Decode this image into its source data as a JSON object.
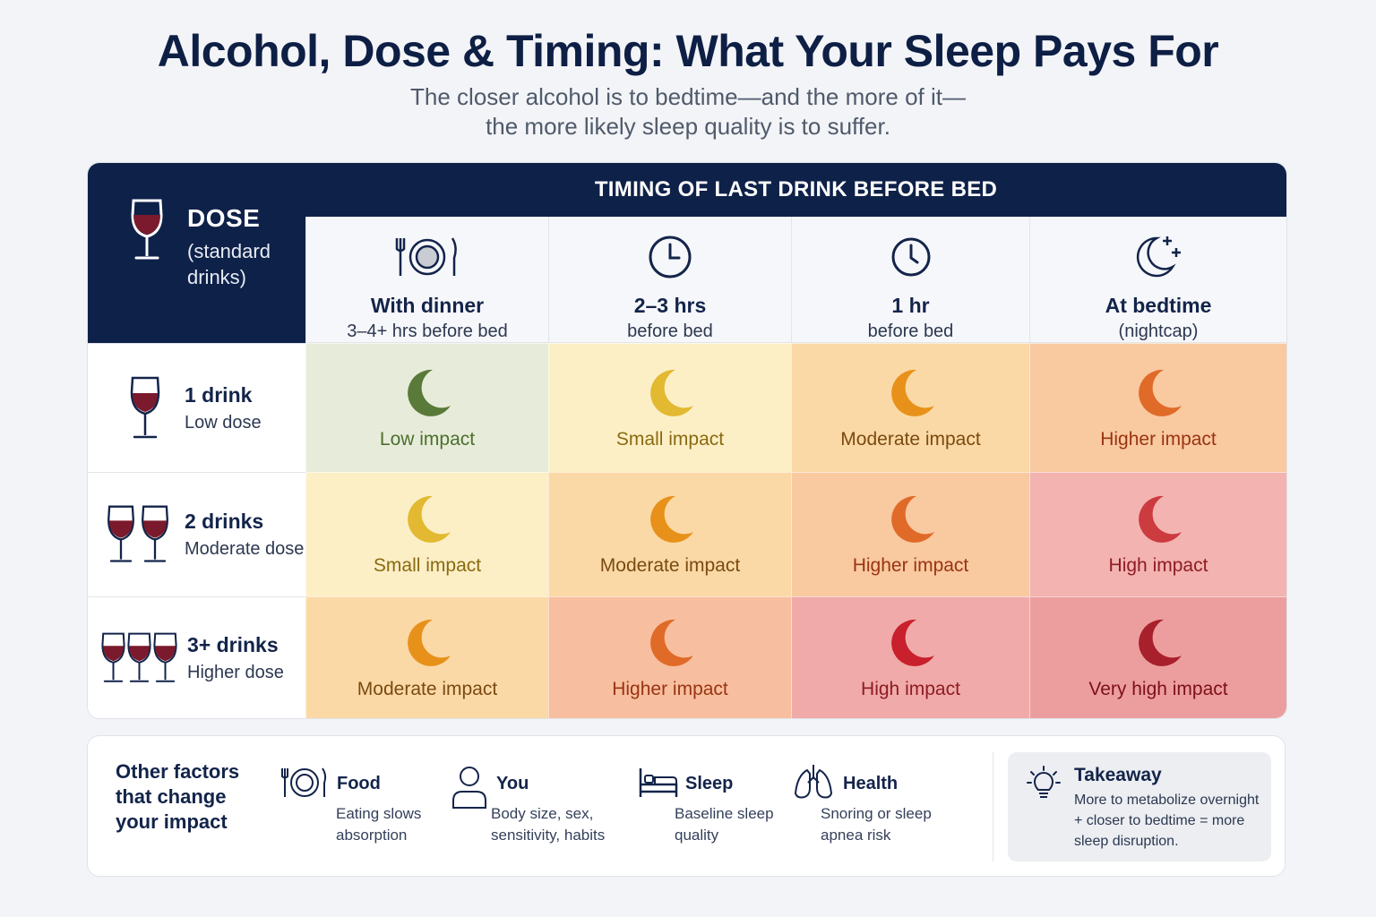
{
  "title": "Alcohol, Dose & Timing: What Your Sleep Pays For",
  "subtitle_lines": [
    "The closer alcohol is to bedtime—and the more of it—",
    "the more likely sleep quality is to suffer."
  ],
  "dose_header": {
    "title": "DOSE",
    "subtitle": "(standard drinks)",
    "icon": "wine-glass-icon"
  },
  "timing_header": "TIMING OF LAST DRINK BEFORE BED",
  "columns": [
    {
      "label": "With dinner",
      "sub": "3–4+ hrs before bed",
      "icon": "plate-fork-knife-icon"
    },
    {
      "label": "2–3 hrs",
      "sub": "before bed",
      "icon": "clock-icon"
    },
    {
      "label": "1 hr",
      "sub": "before bed",
      "icon": "clock-icon"
    },
    {
      "label": "At bedtime",
      "sub": "(nightcap)",
      "icon": "moon-stars-icon"
    }
  ],
  "rows": [
    {
      "label": "1 drink",
      "sub": "Low dose",
      "glasses": 1
    },
    {
      "label": "2 drinks",
      "sub": "Moderate dose",
      "glasses": 2
    },
    {
      "label": "3+ drinks",
      "sub": "Higher dose",
      "glasses": 3
    }
  ],
  "cells": [
    [
      {
        "text": "Low impact",
        "bg": "#e6ecd9",
        "moon": "#5a7a3a",
        "color": "#4e6e2e"
      },
      {
        "text": "Small impact",
        "bg": "#fcefc6",
        "moon": "#e2b930",
        "color": "#8a6a10"
      },
      {
        "text": "Moderate impact",
        "bg": "#fbd9a6",
        "moon": "#e8911a",
        "color": "#7a4a10"
      },
      {
        "text": "Higher impact",
        "bg": "#f9c9a0",
        "moon": "#e06a28",
        "color": "#9a3412"
      }
    ],
    [
      {
        "text": "Small impact",
        "bg": "#fcefc6",
        "moon": "#e2b930",
        "color": "#8a6a10"
      },
      {
        "text": "Moderate impact",
        "bg": "#fbd9a6",
        "moon": "#e8911a",
        "color": "#7a4a10"
      },
      {
        "text": "Higher impact",
        "bg": "#f9c9a0",
        "moon": "#e06a28",
        "color": "#9a3412"
      },
      {
        "text": "High impact",
        "bg": "#f3b3b0",
        "moon": "#cc3b40",
        "color": "#8e1c24"
      }
    ],
    [
      {
        "text": "Moderate impact",
        "bg": "#fbd9a6",
        "moon": "#e8911a",
        "color": "#7a4a10"
      },
      {
        "text": "Higher impact",
        "bg": "#f7bf9f",
        "moon": "#e06a28",
        "color": "#9a3412"
      },
      {
        "text": "High impact",
        "bg": "#f0aaa9",
        "moon": "#c8202c",
        "color": "#8e1c24"
      },
      {
        "text": "Very high impact",
        "bg": "#ec9e9e",
        "moon": "#a8202c",
        "color": "#7c1018"
      }
    ]
  ],
  "factors": {
    "title": "Other factors that change your impact",
    "items": [
      {
        "label": "Food",
        "desc": "Eating slows absorption",
        "icon": "plate-icon"
      },
      {
        "label": "You",
        "desc": "Body size, sex, sensitivity, habits",
        "icon": "person-icon"
      },
      {
        "label": "Sleep",
        "desc": "Baseline sleep quality",
        "icon": "bed-icon"
      },
      {
        "label": "Health",
        "desc": "Snoring or sleep apnea risk",
        "icon": "lungs-icon"
      }
    ],
    "takeaway": {
      "title": "Takeaway",
      "text": "More to metabolize overnight + closer to bedtime = more sleep disruption.",
      "icon": "lightbulb-icon"
    }
  },
  "colors": {
    "navy": "#0e2149",
    "wine": "#7a1a2c"
  }
}
